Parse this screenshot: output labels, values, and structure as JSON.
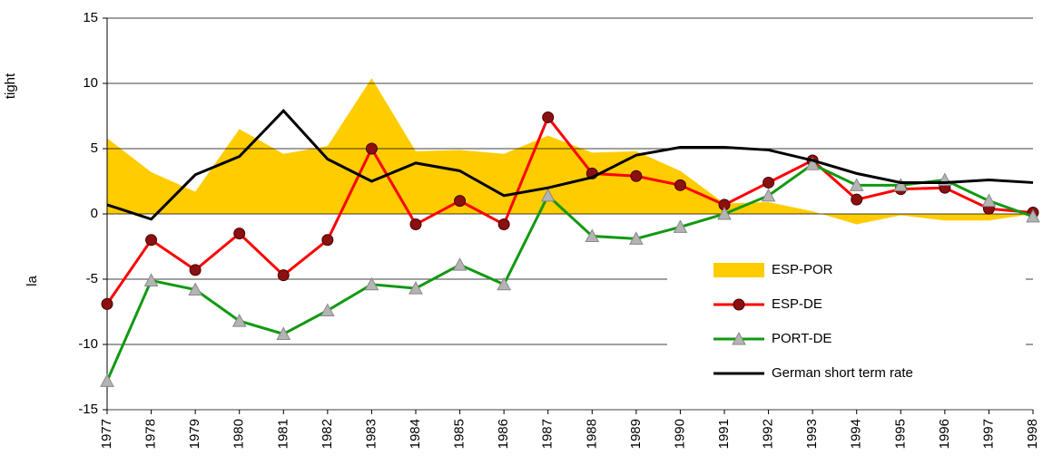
{
  "chart_data": {
    "type": "line",
    "y_label_upper": "tight",
    "y_label_lower": "la",
    "x": [
      1977,
      1978,
      1979,
      1980,
      1981,
      1982,
      1983,
      1984,
      1985,
      1986,
      1987,
      1988,
      1989,
      1990,
      1991,
      1992,
      1993,
      1994,
      1995,
      1996,
      1997,
      1998
    ],
    "xlim": [
      1977,
      1998
    ],
    "xticks": [
      1977,
      1978,
      1979,
      1980,
      1981,
      1982,
      1983,
      1984,
      1985,
      1986,
      1987,
      1988,
      1989,
      1990,
      1991,
      1992,
      1993,
      1994,
      1995,
      1996,
      1997,
      1998
    ],
    "ylim": [
      -15,
      15
    ],
    "yticks": [
      15,
      10,
      5,
      0,
      -5,
      -10,
      -15
    ],
    "grid": true,
    "legend": "lower right",
    "series": [
      {
        "name": "ESP-POR",
        "kind": "area",
        "color": "#ffcc00",
        "values": [
          5.8,
          3.2,
          1.7,
          6.5,
          4.6,
          5.2,
          10.4,
          4.8,
          4.9,
          4.6,
          6.0,
          4.7,
          4.8,
          3.3,
          0.8,
          0.9,
          0.2,
          -0.8,
          -0.1,
          -0.5,
          -0.5,
          0
        ]
      },
      {
        "name": "ESP-DE",
        "kind": "line",
        "marker": "circle",
        "color": "#ff0000",
        "marker_color": "#8b1010",
        "values": [
          -6.9,
          -2.0,
          -4.3,
          -1.5,
          -4.7,
          -2.0,
          5.0,
          -0.8,
          1.0,
          -0.8,
          7.4,
          3.1,
          2.9,
          2.2,
          0.7,
          2.4,
          4.1,
          1.1,
          1.9,
          2.0,
          0.4,
          0.1
        ]
      },
      {
        "name": "PORT-DE",
        "kind": "line",
        "marker": "triangle",
        "color": "#119911",
        "marker_color": "#b4b4b4",
        "values": [
          -12.8,
          -5.1,
          -5.8,
          -8.2,
          -9.2,
          -7.4,
          -5.4,
          -5.7,
          -3.9,
          -5.4,
          1.4,
          -1.7,
          -1.9,
          -1.0,
          0.0,
          1.4,
          3.8,
          2.2,
          2.2,
          2.6,
          1.0,
          -0.2
        ]
      },
      {
        "name": "German short term rate",
        "kind": "line",
        "marker": "none",
        "color": "#000000",
        "values": [
          0.7,
          -0.4,
          3.0,
          4.4,
          7.9,
          4.2,
          2.5,
          3.9,
          3.3,
          1.4,
          2.0,
          2.8,
          4.5,
          5.1,
          5.1,
          4.9,
          4.1,
          3.1,
          2.4,
          2.4,
          2.6,
          2.4
        ]
      }
    ]
  }
}
